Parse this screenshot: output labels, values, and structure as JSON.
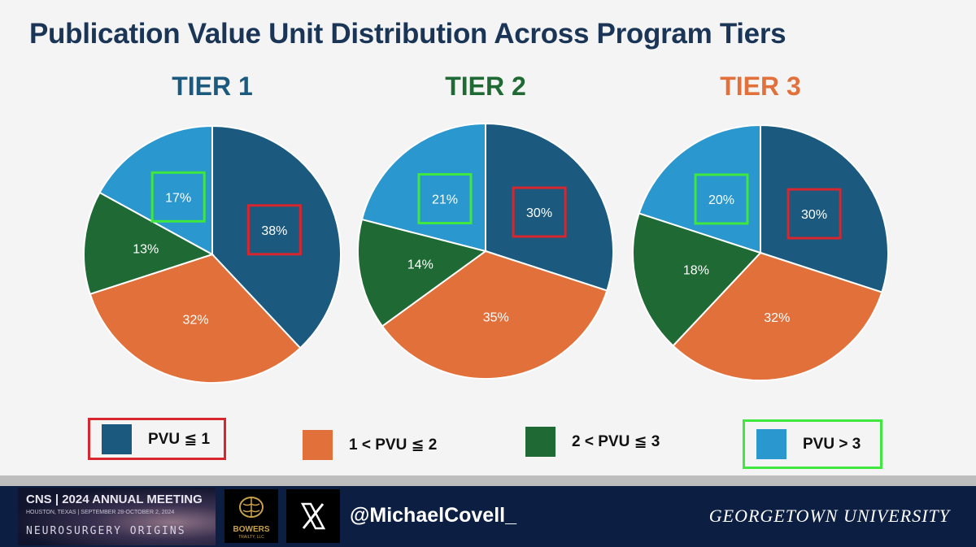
{
  "title": "Publication Value Unit Distribution Across Program Tiers",
  "chart_data": [
    {
      "type": "pie",
      "title": "TIER 1",
      "categories": [
        "PVU ≦ 1",
        "1 < PVU ≦ 2",
        "2 < PVU ≦ 3",
        "PVU > 3"
      ],
      "values": [
        38,
        32,
        13,
        17
      ],
      "labels": [
        "38%",
        "32%",
        "13%",
        "17%"
      ],
      "highlighted": {
        "PVU ≦ 1": "red",
        "PVU > 3": "green"
      }
    },
    {
      "type": "pie",
      "title": "TIER 2",
      "categories": [
        "PVU ≦ 1",
        "1 < PVU ≦ 2",
        "2 < PVU ≦ 3",
        "PVU > 3"
      ],
      "values": [
        30,
        35,
        14,
        21
      ],
      "labels": [
        "30%",
        "35%",
        "14%",
        "21%"
      ],
      "highlighted": {
        "PVU ≦ 1": "red",
        "PVU > 3": "green"
      }
    },
    {
      "type": "pie",
      "title": "TIER 3",
      "categories": [
        "PVU ≦ 1",
        "1 < PVU ≦ 2",
        "2 < PVU ≦ 3",
        "PVU > 3"
      ],
      "values": [
        30,
        32,
        18,
        20
      ],
      "labels": [
        "30%",
        "32%",
        "18%",
        "20%"
      ],
      "highlighted": {
        "PVU ≦ 1": "red",
        "PVU > 3": "green"
      }
    }
  ],
  "tier_colors": [
    "#1b5a7e",
    "#1f6a34",
    "#e2703a"
  ],
  "slice_colors": [
    "#1b5a7e",
    "#e2703a",
    "#1f6a34",
    "#2a97cf"
  ],
  "highlight_colors": {
    "red": "#d7262e",
    "green": "#3ee83e"
  },
  "legend": [
    {
      "label": "PVU ≦ 1",
      "color": "#1b5a7e",
      "box": "red"
    },
    {
      "label": "1 < PVU ≦ 2",
      "color": "#e2703a",
      "box": ""
    },
    {
      "label": "2 < PVU ≦ 3",
      "color": "#1f6a34",
      "box": ""
    },
    {
      "label": "PVU > 3",
      "color": "#2a97cf",
      "box": "green"
    }
  ],
  "footer": {
    "cns_logo_text": "CNS | 2024 ANNUAL MEETING",
    "cns_location": "HOUSTON, TEXAS | SEPTEMBER 28-OCTOBER 2, 2024",
    "cns_theme": "NEUROSURGERY ORIGINS",
    "bowers_name": "BOWERS",
    "bowers_sub": "TRAILTY, LLC",
    "handle": "@MichaelCovell_",
    "university": "GEORGETOWN UNIVERSITY",
    "icons": [
      "brain-icon",
      "x-logo-icon"
    ]
  }
}
